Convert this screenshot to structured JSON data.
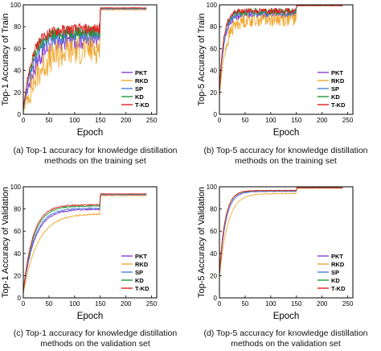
{
  "chart_data": [
    {
      "type": "line",
      "panel": "a",
      "ylabel": "Top-1 Accuracy of Train",
      "xlabel": "Epoch",
      "xlim": [
        0,
        260
      ],
      "ylim": [
        0,
        100
      ],
      "xticks": [
        0,
        50,
        100,
        150,
        200,
        250
      ],
      "yticks": [
        0,
        20,
        40,
        60,
        80,
        100
      ],
      "caption": [
        "(a) Top-1 accuracy for knowledge distillation",
        "methods on the training set"
      ],
      "legend": "bottom-right",
      "grid": false,
      "series": [
        {
          "name": "PKT",
          "color": "#8b3bd6",
          "start": 3,
          "rise": 72,
          "tau": 22,
          "noise": 9,
          "plateau": 96
        },
        {
          "name": "RKD",
          "color": "#f0a830",
          "start": 2,
          "rise": 66,
          "tau": 28,
          "noise": 14,
          "plateau": 95.5
        },
        {
          "name": "SP",
          "color": "#4a7fd8",
          "start": 3,
          "rise": 76,
          "tau": 20,
          "noise": 7,
          "plateau": 96.5
        },
        {
          "name": "KD",
          "color": "#1e9a3a",
          "start": 4,
          "rise": 78,
          "tau": 18,
          "noise": 6,
          "plateau": 97
        },
        {
          "name": "T-KD",
          "color": "#e01e1e",
          "start": 4,
          "rise": 80,
          "tau": 17,
          "noise": 5,
          "plateau": 97.2
        }
      ]
    },
    {
      "type": "line",
      "panel": "b",
      "ylabel": "Top-5 Accuracy of Train",
      "xlabel": "Epoch",
      "xlim": [
        0,
        260
      ],
      "ylim": [
        0,
        100
      ],
      "xticks": [
        0,
        50,
        100,
        150,
        200,
        250
      ],
      "yticks": [
        0,
        20,
        40,
        60,
        80,
        100
      ],
      "caption": [
        "(b) Top-5 accuracy for knowledge distillation",
        "methods on the training set"
      ],
      "legend": "bottom-right",
      "grid": false,
      "series": [
        {
          "name": "PKT",
          "color": "#8b3bd6",
          "start": 18,
          "rise": 93,
          "tau": 9,
          "noise": 4,
          "plateau": 99.3
        },
        {
          "name": "RKD",
          "color": "#f0a830",
          "start": 15,
          "rise": 90,
          "tau": 12,
          "noise": 7,
          "plateau": 99.1
        },
        {
          "name": "SP",
          "color": "#4a7fd8",
          "start": 18,
          "rise": 94,
          "tau": 9,
          "noise": 3,
          "plateau": 99.4
        },
        {
          "name": "KD",
          "color": "#1e9a3a",
          "start": 20,
          "rise": 95,
          "tau": 8,
          "noise": 3,
          "plateau": 99.5
        },
        {
          "name": "T-KD",
          "color": "#e01e1e",
          "start": 20,
          "rise": 95.5,
          "tau": 8,
          "noise": 2.5,
          "plateau": 99.5
        }
      ]
    },
    {
      "type": "line",
      "panel": "c",
      "ylabel": "Top-1 Accuracy of Validation",
      "xlabel": "Epoch",
      "xlim": [
        0,
        260
      ],
      "ylim": [
        0,
        100
      ],
      "xticks": [
        0,
        50,
        100,
        150,
        200,
        250
      ],
      "yticks": [
        0,
        20,
        40,
        60,
        80,
        100
      ],
      "caption": [
        "(c) Top-1 accuracy for knowledge distillation",
        "methods on the validation set"
      ],
      "legend": "bottom-right",
      "grid": false,
      "series": [
        {
          "name": "PKT",
          "color": "#8b3bd6",
          "start": 5,
          "rise": 80,
          "tau": 22,
          "noise": 0.6,
          "plateau": 92.8
        },
        {
          "name": "RKD",
          "color": "#f0a830",
          "start": 4,
          "rise": 76,
          "tau": 28,
          "noise": 0.6,
          "plateau": 92.0
        },
        {
          "name": "SP",
          "color": "#4a7fd8",
          "start": 5,
          "rise": 81,
          "tau": 21,
          "noise": 0.6,
          "plateau": 93.0
        },
        {
          "name": "KD",
          "color": "#1e9a3a",
          "start": 6,
          "rise": 83,
          "tau": 20,
          "noise": 0.5,
          "plateau": 93.4
        },
        {
          "name": "T-KD",
          "color": "#e01e1e",
          "start": 6,
          "rise": 84,
          "tau": 19,
          "noise": 0.5,
          "plateau": 93.6
        }
      ]
    },
    {
      "type": "line",
      "panel": "d",
      "ylabel": "Top-5 Accuracy of Validation",
      "xlabel": "Epoch",
      "xlim": [
        0,
        260
      ],
      "ylim": [
        0,
        100
      ],
      "xticks": [
        0,
        50,
        100,
        150,
        200,
        250
      ],
      "yticks": [
        0,
        20,
        40,
        60,
        80,
        100
      ],
      "caption": [
        "(d) Top-5 accuracy for knowledge distillation",
        "methods on the validation set"
      ],
      "legend": "bottom-right",
      "grid": false,
      "series": [
        {
          "name": "PKT",
          "color": "#8b3bd6",
          "start": 20,
          "rise": 96,
          "tau": 12,
          "noise": 0.3,
          "plateau": 98.9
        },
        {
          "name": "RKD",
          "color": "#f0a830",
          "start": 18,
          "rise": 94,
          "tau": 16,
          "noise": 0.3,
          "plateau": 98.6
        },
        {
          "name": "SP",
          "color": "#4a7fd8",
          "start": 20,
          "rise": 96.2,
          "tau": 12,
          "noise": 0.3,
          "plateau": 99.0
        },
        {
          "name": "KD",
          "color": "#1e9a3a",
          "start": 22,
          "rise": 96.6,
          "tau": 11,
          "noise": 0.3,
          "plateau": 99.1
        },
        {
          "name": "T-KD",
          "color": "#e01e1e",
          "start": 22,
          "rise": 96.8,
          "tau": 11,
          "noise": 0.3,
          "plateau": 99.2
        }
      ]
    }
  ]
}
